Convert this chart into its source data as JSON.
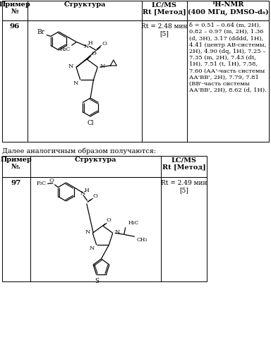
{
  "bg_color": "#ffffff",
  "t1_header_cols": [
    "Пример\n№",
    "Структура",
    "LC/MS\nRt [Метод]",
    "¹H-NMR\n(400 МГц, DMSO-d₆)"
  ],
  "t1_row96_lcms": "Rt = 2.48 мин\n[5]",
  "t1_row96_nmr": "δ = 0.51 – 0.64 (m, 2H),\n0.82 – 0.97 (m, 2H), 1.36\n(d, 3H), 3.17 (dddd, 1H),\n4.41 (центр АВ-системы,\n2H), 4.90 (dq, 1H), 7.25 –\n7.35 (m, 2H), 7.43 (dt,\n1H), 7.51 (t, 1H), 7.58,\n7.60 (АА'-часть системы\nАА'ВВ', 2H), 7.79, 7.81\n(ВВ'-часть системы\nАА'ВВ', 2H), 8.62 (d, 1H).",
  "intertext": "Далее аналогичным образом получаются:",
  "t2_header_cols": [
    "Пример\n№.",
    "Структура",
    "LC/MS\nRt [Метод]"
  ],
  "t2_row97_lcms": "Rt = 2.49 мин\n[5]",
  "fsh": 7.0,
  "fsb": 6.5,
  "fsnmr": 6.0,
  "fsinter": 7.0
}
